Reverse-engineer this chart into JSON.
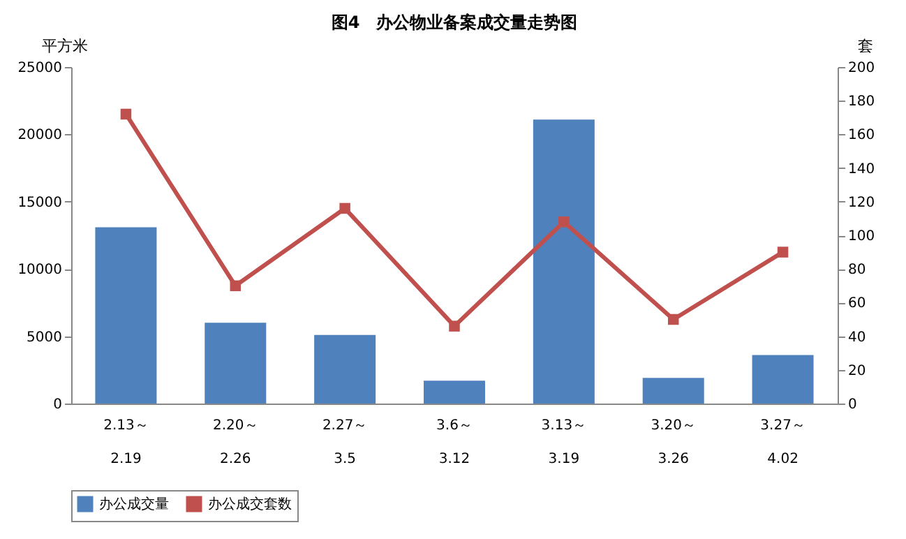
{
  "chart_data": {
    "type": "bar",
    "title": "图4　办公物业备案成交量走势图",
    "ylabel": "平方米",
    "y2label": "套",
    "categories": [
      "2.13～\n2.19",
      "2.20～\n2.26",
      "2.27～\n3.5",
      "3.6～\n3.12",
      "3.13～\n3.19",
      "3.20～\n3.26",
      "3.27～\n4.02"
    ],
    "series": [
      {
        "name": "办公成交量",
        "color": "#4f81bd",
        "values": [
          13100,
          6000,
          5100,
          1700,
          21100,
          1900,
          3600
        ]
      },
      {
        "name": "办公成交套数",
        "type": "line",
        "axis": "y2",
        "color": "#c0504d",
        "marker": "square",
        "values": [
          172,
          70,
          116,
          46,
          108,
          50,
          90
        ]
      }
    ],
    "ylim": [
      0,
      25000
    ],
    "yticks": [
      0,
      5000,
      10000,
      15000,
      20000,
      25000
    ],
    "y2lim": [
      0,
      200
    ],
    "y2ticks": [
      0,
      20,
      40,
      60,
      80,
      100,
      120,
      140,
      160,
      180,
      200
    ],
    "grid": false,
    "legend": "bottom"
  }
}
